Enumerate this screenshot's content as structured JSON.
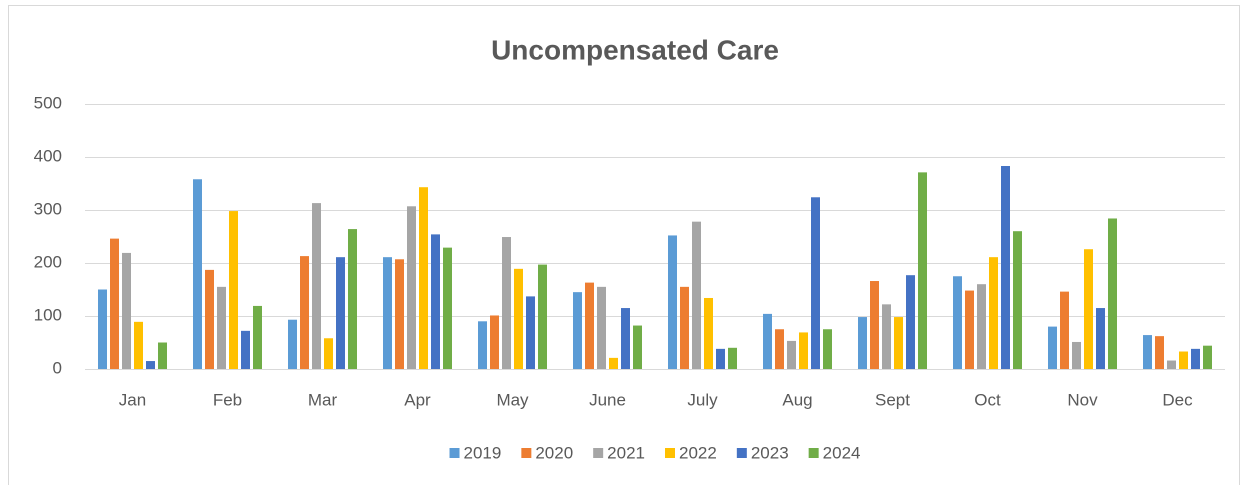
{
  "chart_data": {
    "type": "bar",
    "title": "Uncompensated Care",
    "categories": [
      "Jan",
      "Feb",
      "Mar",
      "Apr",
      "May",
      "June",
      "July",
      "Aug",
      "Sept",
      "Oct",
      "Nov",
      "Dec"
    ],
    "series": [
      {
        "name": "2019",
        "color": "#5b9bd5",
        "values": [
          150,
          358,
          93,
          211,
          90,
          145,
          252,
          104,
          98,
          175,
          80,
          64
        ]
      },
      {
        "name": "2020",
        "color": "#ed7d31",
        "values": [
          246,
          187,
          213,
          207,
          101,
          163,
          155,
          75,
          166,
          148,
          146,
          62
        ]
      },
      {
        "name": "2021",
        "color": "#a5a5a5",
        "values": [
          219,
          155,
          313,
          307,
          249,
          155,
          278,
          53,
          122,
          160,
          51,
          16
        ]
      },
      {
        "name": "2022",
        "color": "#ffc000",
        "values": [
          89,
          298,
          58,
          343,
          189,
          21,
          134,
          69,
          98,
          211,
          226,
          33
        ]
      },
      {
        "name": "2023",
        "color": "#4472c4",
        "values": [
          15,
          72,
          211,
          254,
          137,
          115,
          38,
          324,
          177,
          383,
          115,
          38
        ]
      },
      {
        "name": "2024",
        "color": "#70ad47",
        "values": [
          50,
          119,
          264,
          229,
          197,
          82,
          40,
          75,
          371,
          260,
          284,
          44
        ]
      }
    ],
    "ylim": [
      0,
      500
    ],
    "yticks": [
      0,
      100,
      200,
      300,
      400,
      500
    ],
    "grid": true,
    "legend": "bottom"
  }
}
